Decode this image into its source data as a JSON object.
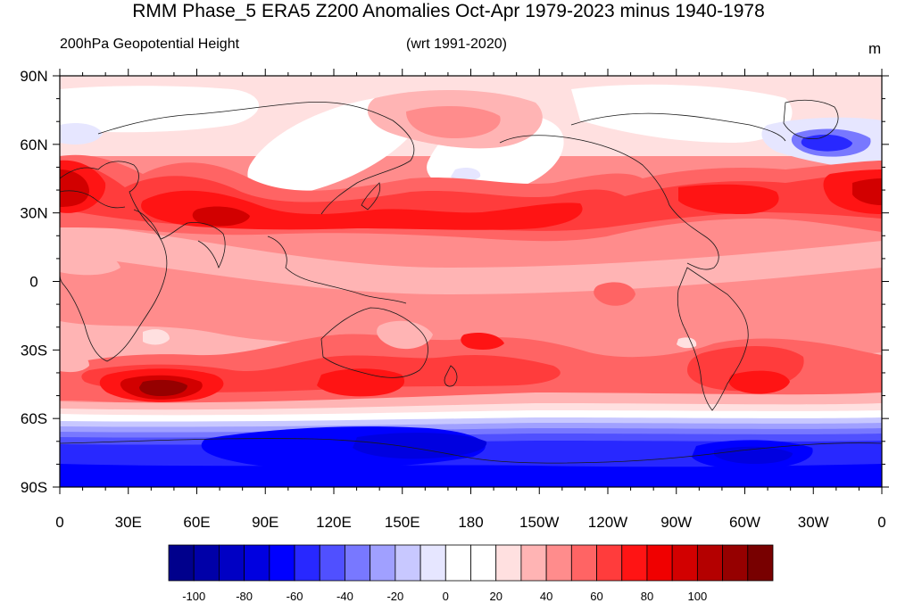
{
  "title": "RMM Phase_5 ERA5 Z200 Anomalies Oct-Apr 1979-2023 minus 1940-1978",
  "left_subtitle": "200hPa Geopotential Height",
  "center_subtitle": "(wrt 1991-2020)",
  "units": "m",
  "lon_labels": [
    "0",
    "30E",
    "60E",
    "90E",
    "120E",
    "150E",
    "180",
    "150W",
    "120W",
    "90W",
    "60W",
    "30W",
    "0"
  ],
  "lat_labels": [
    "90N",
    "60N",
    "30N",
    "0",
    "30S",
    "60S",
    "90S"
  ],
  "colorbar": {
    "labels": [
      "-100",
      "-80",
      "-60",
      "-40",
      "-20",
      "0",
      "20",
      "40",
      "60",
      "80",
      "100"
    ],
    "colors": [
      "#00008c",
      "#0000a8",
      "#0000c4",
      "#0000e0",
      "#0000ff",
      "#2828ff",
      "#5050ff",
      "#7878ff",
      "#a0a0ff",
      "#c8c8ff",
      "#e6e6ff",
      "#ffffff",
      "#ffffff",
      "#ffe0e0",
      "#ffb4b4",
      "#ff8c8c",
      "#ff6464",
      "#ff3c3c",
      "#ff1414",
      "#f00000",
      "#d20000",
      "#b40000",
      "#960000",
      "#780000"
    ]
  },
  "field_colors": {
    "c10": "#ffe0e0",
    "c20": "#ffb4b4",
    "c30": "#ff8c8c",
    "c40": "#ff6464",
    "c50": "#ff3c3c",
    "c60": "#ff1414",
    "c80": "#d20000",
    "c100": "#960000",
    "n10": "#e6e6ff",
    "n20": "#c8c8ff",
    "n30": "#a0a0ff",
    "n40": "#7878ff",
    "n50": "#5050ff",
    "n60": "#2828ff",
    "n70": "#0000ff",
    "n80": "#0000e0",
    "n90": "#0000c4"
  }
}
